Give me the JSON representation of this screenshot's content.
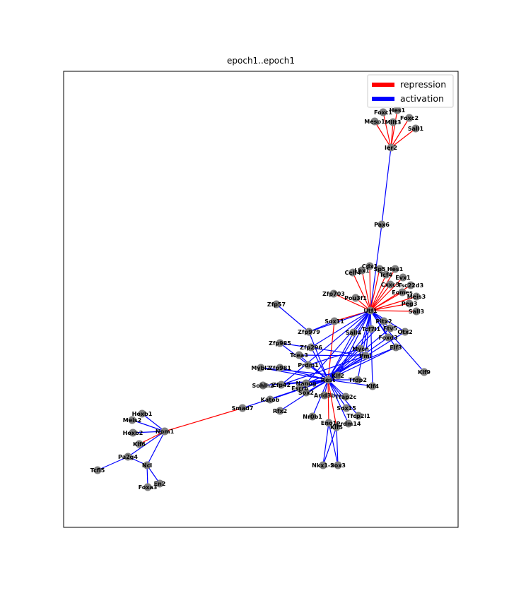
{
  "title": "epoch1..epoch1",
  "legend": {
    "placement": "top-right",
    "entries": [
      {
        "label": "repression",
        "color": "#ff0000"
      },
      {
        "label": "activation",
        "color": "#0000ff"
      }
    ]
  },
  "colors": {
    "repression": "#ff0000",
    "activation": "#0000ff",
    "node": "#808080"
  },
  "nodes": [
    "Hes1_top",
    "Foxc1",
    "Foxc2",
    "Mesp1",
    "Mllt3",
    "Sall1",
    "Ier2",
    "Pax6",
    "Cdx1",
    "Sp5",
    "Hes1",
    "Celf4",
    "Lhx1",
    "Tcf4",
    "Evx1",
    "Cxxc5",
    "Tsc22d3",
    "Eomes",
    "Meis3",
    "Peg3",
    "Sall3",
    "Zfp703",
    "Pou3f1",
    "Utf1",
    "Zfp57",
    "Sox11",
    "Pitx2",
    "Etv5",
    "Otx2",
    "Foxd3",
    "Elf3",
    "Zfp979",
    "Zfp985",
    "Zfp296",
    "Tcea3",
    "Prdm1",
    "Mybl2",
    "Zfp981",
    "Sohlh2",
    "Zfp42",
    "Nanog",
    "Esrrb",
    "Sox2",
    "Rest",
    "Klf2",
    "Klf4",
    "Tfap2c",
    "Tfcp2l1",
    "Prdm14",
    "Pml",
    "Tcf7l1",
    "Sall4",
    "Mycn",
    "Klf9",
    "Katob",
    "Rfx2",
    "Nr0b1",
    "Eno1",
    "Klf5",
    "Sox15",
    "Nkx1-2",
    "Sox3",
    "Smad7",
    "Hoxb1",
    "Meis2",
    "Hoxb2",
    "Klf6",
    "Npm1",
    "Pa2g4",
    "Tcfl5",
    "Ncl",
    "Foxa3",
    "En2",
    "Tfdp2",
    "Arid3b"
  ],
  "node_labels": {
    "Hes1_top": "Hes1",
    "Foxc1": "Foxc1",
    "Foxc2": "Foxc2",
    "Mesp1": "Mesp1",
    "Mllt3": "Mllt3",
    "Sall1": "Sall1",
    "Ier2": "Ier2",
    "Pax6": "Pax6",
    "Cdx1": "Cdx1",
    "Sp5": "Sp5",
    "Hes1": "Hes1",
    "Celf4": "Celf4",
    "Lhx1": "Lhx1",
    "Tcf4": "Tcf4",
    "Evx1": "Evx1",
    "Cxxc5": "Cxxc5",
    "Tsc22d3": "Tsc22d3",
    "Eomes": "Eomes",
    "Meis3": "Meis3",
    "Peg3": "Peg3",
    "Sall3": "Sall3",
    "Zfp703": "Zfp703",
    "Pou3f1": "Pou3f1",
    "Utf1": "Utf1",
    "Zfp57": "Zfp57",
    "Sox11": "Sox11",
    "Pitx2": "Pitx2",
    "Etv5": "Etv5",
    "Otx2": "Otx2",
    "Foxd3": "Foxd3",
    "Elf3": "Elf3",
    "Zfp979": "Zfp979",
    "Zfp985": "Zfp985",
    "Zfp296": "Zfp296",
    "Tcea3": "Tcea3",
    "Prdm1": "Prdm1",
    "Mybl2": "Mybl2",
    "Zfp981": "Zfp981",
    "Sohlh2": "Sohlh2",
    "Zfp42": "Zfp42",
    "Nanog": "Nanog",
    "Esrrb": "Esrrb",
    "Sox2": "Sox2",
    "Rest": "Rest",
    "Klf2": "Klf2",
    "Klf4": "Klf4",
    "Tfap2c": "Tfap2c",
    "Tfcp2l1": "Tfcp2l1",
    "Prdm14": "Prdm14",
    "Pml": "Pml",
    "Tcf7l1": "Tcf7l1",
    "Sall4": "Sall4",
    "Mycn": "Mycn",
    "Klf9": "Klf9",
    "Katob": "Katob",
    "Rfx2": "Rfx2",
    "Nr0b1": "Nr0b1",
    "Eno1": "Eno1",
    "Klf5": "Klf5",
    "Sox15": "Sox15",
    "Nkx1-2": "Nkx1-2",
    "Sox3": "Sox3",
    "Smad7": "Smad7",
    "Hoxb1": "Hoxb1",
    "Meis2": "Meis2",
    "Hoxb2": "Hoxb2",
    "Klf6": "Klf6",
    "Npm1": "Npm1",
    "Pa2g4": "Pa2g4",
    "Tcfl5": "Tcfl5",
    "Ncl": "Ncl",
    "Foxa3": "Foxa3",
    "En2": "En2",
    "Tfdp2": "Tfdp2",
    "Arid3b": "Arid3b"
  },
  "edges": [
    [
      "Ier2",
      "Hes1_top",
      "repression"
    ],
    [
      "Ier2",
      "Foxc1",
      "repression"
    ],
    [
      "Ier2",
      "Foxc2",
      "repression"
    ],
    [
      "Ier2",
      "Mesp1",
      "repression"
    ],
    [
      "Ier2",
      "Mllt3",
      "repression"
    ],
    [
      "Ier2",
      "Sall1",
      "repression"
    ],
    [
      "Ier2",
      "Pax6",
      "activation"
    ],
    [
      "Pax6",
      "Utf1",
      "activation"
    ],
    [
      "Utf1",
      "Cdx1",
      "repression"
    ],
    [
      "Utf1",
      "Sp5",
      "repression"
    ],
    [
      "Utf1",
      "Hes1",
      "repression"
    ],
    [
      "Utf1",
      "Celf4",
      "repression"
    ],
    [
      "Utf1",
      "Lhx1",
      "repression"
    ],
    [
      "Utf1",
      "Tcf4",
      "repression"
    ],
    [
      "Utf1",
      "Evx1",
      "repression"
    ],
    [
      "Utf1",
      "Cxxc5",
      "repression"
    ],
    [
      "Utf1",
      "Tsc22d3",
      "repression"
    ],
    [
      "Utf1",
      "Eomes",
      "repression"
    ],
    [
      "Utf1",
      "Meis3",
      "repression"
    ],
    [
      "Utf1",
      "Peg3",
      "repression"
    ],
    [
      "Utf1",
      "Sall3",
      "repression"
    ],
    [
      "Utf1",
      "Zfp703",
      "repression"
    ],
    [
      "Utf1",
      "Pou3f1",
      "repression"
    ],
    [
      "Utf1",
      "Sox11",
      "repression"
    ],
    [
      "Utf1",
      "Pitx2",
      "activation"
    ],
    [
      "Utf1",
      "Etv5",
      "activation"
    ],
    [
      "Utf1",
      "Otx2",
      "activation"
    ],
    [
      "Utf1",
      "Foxd3",
      "activation"
    ],
    [
      "Utf1",
      "Elf3",
      "activation"
    ],
    [
      "Utf1",
      "Klf9",
      "activation"
    ],
    [
      "Utf1",
      "Pml",
      "activation"
    ],
    [
      "Utf1",
      "Tcf7l1",
      "activation"
    ],
    [
      "Utf1",
      "Sall4",
      "activation"
    ],
    [
      "Utf1",
      "Mycn",
      "activation"
    ],
    [
      "Utf1",
      "Zfp979",
      "activation"
    ],
    [
      "Utf1",
      "Zfp296",
      "activation"
    ],
    [
      "Utf1",
      "Klf2",
      "activation"
    ],
    [
      "Utf1",
      "Nanog",
      "activation"
    ],
    [
      "Utf1",
      "Rest",
      "activation"
    ],
    [
      "Utf1",
      "Klf4",
      "activation"
    ],
    [
      "Utf1",
      "Tfdp2",
      "activation"
    ],
    [
      "Utf1",
      "Zfp42",
      "activation"
    ],
    [
      "Zfp57",
      "Zfp979",
      "activation"
    ],
    [
      "Zfp979",
      "Rest",
      "activation"
    ],
    [
      "Zfp979",
      "Sox11",
      "activation"
    ],
    [
      "Zfp985",
      "Rest",
      "activation"
    ],
    [
      "Tcea3",
      "Rest",
      "activation"
    ],
    [
      "Prdm1",
      "Rest",
      "activation"
    ],
    [
      "Mybl2",
      "Rest",
      "activation"
    ],
    [
      "Zfp981",
      "Rest",
      "activation"
    ],
    [
      "Sohlh2",
      "Rest",
      "activation"
    ],
    [
      "Zfp42",
      "Rest",
      "activation"
    ],
    [
      "Nanog",
      "Rest",
      "activation"
    ],
    [
      "Esrrb",
      "Rest",
      "activation"
    ],
    [
      "Sox2",
      "Rest",
      "activation"
    ],
    [
      "Klf2",
      "Rest",
      "activation"
    ],
    [
      "Pml",
      "Rest",
      "activation"
    ],
    [
      "Elf3",
      "Rest",
      "activation"
    ],
    [
      "Klf4",
      "Rest",
      "activation"
    ],
    [
      "Tfap2c",
      "Rest",
      "activation"
    ],
    [
      "Tfcp2l1",
      "Rest",
      "activation"
    ],
    [
      "Prdm14",
      "Rest",
      "activation"
    ],
    [
      "Katob",
      "Rest",
      "activation"
    ],
    [
      "Rfx2",
      "Rest",
      "activation"
    ],
    [
      "Nr0b1",
      "Rest",
      "activation"
    ],
    [
      "Eno1",
      "Rest",
      "repression"
    ],
    [
      "Klf5",
      "Rest",
      "repression"
    ],
    [
      "Sox15",
      "Rest",
      "activation"
    ],
    [
      "Arid3b",
      "Rest",
      "activation"
    ],
    [
      "Tfdp2",
      "Rest",
      "activation"
    ],
    [
      "Mycn",
      "Rest",
      "activation"
    ],
    [
      "Sall4",
      "Rest",
      "activation"
    ],
    [
      "Tcf7l1",
      "Rest",
      "activation"
    ],
    [
      "Foxd3",
      "Rest",
      "activation"
    ],
    [
      "Otx2",
      "Rest",
      "activation"
    ],
    [
      "Etv5",
      "Rest",
      "activation"
    ],
    [
      "Pitx2",
      "Rest",
      "activation"
    ],
    [
      "Sox11",
      "Rest",
      "repression"
    ],
    [
      "Zfp296",
      "Rest",
      "activation"
    ],
    [
      "Tcea3",
      "Pml",
      "activation"
    ],
    [
      "Prdm1",
      "Mycn",
      "activation"
    ],
    [
      "Zfp985",
      "Pml",
      "activation"
    ],
    [
      "Mybl2",
      "Klf2",
      "activation"
    ],
    [
      "Zfp42",
      "Pml",
      "activation"
    ],
    [
      "Nanog",
      "Elf3",
      "activation"
    ],
    [
      "Esrrb",
      "Klf2",
      "activation"
    ],
    [
      "Sox2",
      "Klf2",
      "activation"
    ],
    [
      "Eno1",
      "Nkx1-2",
      "activation"
    ],
    [
      "Eno1",
      "Sox3",
      "activation"
    ],
    [
      "Klf5",
      "Sox3",
      "activation"
    ],
    [
      "Klf5",
      "Nkx1-2",
      "activation"
    ],
    [
      "Smad7",
      "Rest",
      "activation"
    ],
    [
      "Smad7",
      "Npm1",
      "repression"
    ],
    [
      "Npm1",
      "Hoxb1",
      "activation"
    ],
    [
      "Npm1",
      "Meis2",
      "activation"
    ],
    [
      "Npm1",
      "Hoxb2",
      "activation"
    ],
    [
      "Npm1",
      "Klf6",
      "repression"
    ],
    [
      "Npm1",
      "Pa2g4",
      "activation"
    ],
    [
      "Npm1",
      "Ncl",
      "activation"
    ],
    [
      "Pa2g4",
      "Tcfl5",
      "activation"
    ],
    [
      "Pa2g4",
      "Ncl",
      "activation"
    ],
    [
      "Ncl",
      "Foxa3",
      "activation"
    ],
    [
      "Ncl",
      "En2",
      "activation"
    ]
  ]
}
